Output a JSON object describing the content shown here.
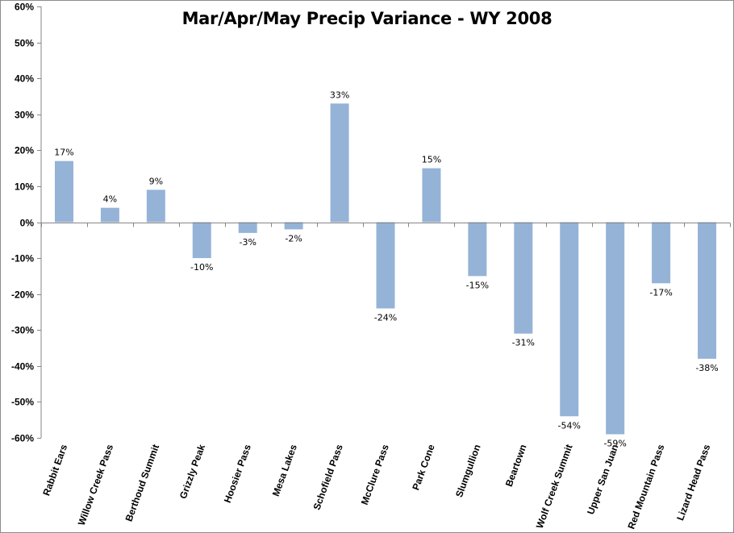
{
  "chart_data": {
    "type": "bar",
    "title": "Mar/Apr/May Precip Variance - WY 2008",
    "xlabel": "",
    "ylabel": "",
    "categories": [
      "Rabbit Ears",
      "Willow Creek Pass",
      "Berthoud Summit",
      "Grizzly Peak",
      "Hoosier Pass",
      "Mesa Lakes",
      "Schofield Pass",
      "McClure Pass",
      "Park Cone",
      "Slumgullion",
      "Beartown",
      "Wolf Creek Summit",
      "Upper San Juan",
      "Red Mountain Pass",
      "Lizard Head Pass"
    ],
    "values": [
      17,
      4,
      9,
      -10,
      -3,
      -2,
      33,
      -24,
      15,
      -15,
      -31,
      -54,
      -59,
      -17,
      -38
    ],
    "data_labels": [
      "17%",
      "4%",
      "9%",
      "-10%",
      "-3%",
      "-2%",
      "33%",
      "-24%",
      "15%",
      "-15%",
      "-31%",
      "-54%",
      "-59%",
      "-17%",
      "-38%"
    ],
    "ylim": [
      -60,
      60
    ],
    "yticks": [
      60,
      50,
      40,
      30,
      20,
      10,
      0,
      -10,
      -20,
      -30,
      -40,
      -50,
      -60
    ],
    "ytick_labels": [
      "60%",
      "50%",
      "40%",
      "30%",
      "20%",
      "10%",
      "0%",
      "-10%",
      "-20%",
      "-30%",
      "-40%",
      "-50%",
      "-60%"
    ],
    "grid": false,
    "legend": "none",
    "bar_color": "#95b3d7",
    "axis_color": "#868686"
  }
}
